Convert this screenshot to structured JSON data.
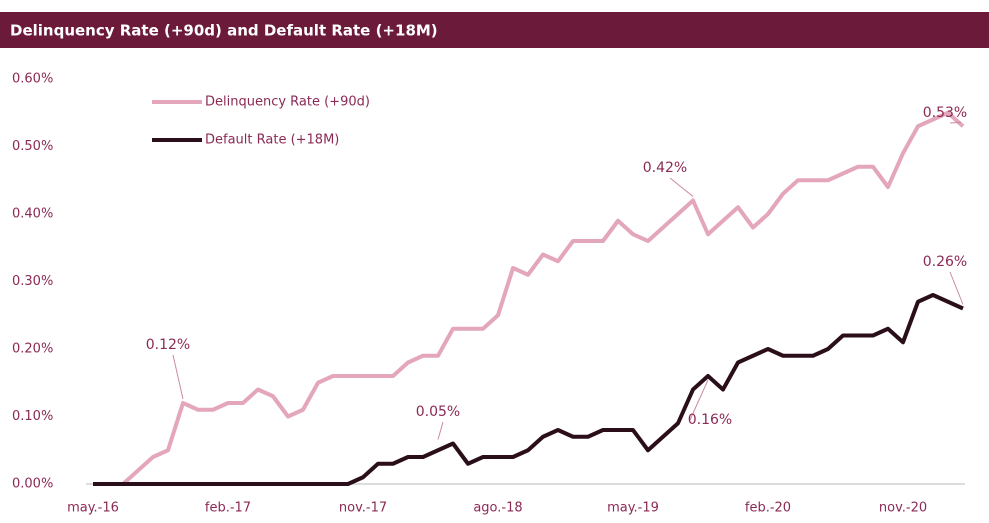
{
  "chart_data": {
    "type": "line",
    "title": "Delinquency Rate (+90d) and Default Rate (+18M)",
    "categories": [
      "may.-16",
      null,
      null,
      null,
      null,
      null,
      null,
      null,
      null,
      "feb.-17",
      null,
      null,
      null,
      null,
      null,
      null,
      null,
      null,
      "nov.-17",
      null,
      null,
      null,
      null,
      null,
      null,
      null,
      null,
      "ago.-18",
      null,
      null,
      null,
      null,
      null,
      null,
      null,
      null,
      "may.-19",
      null,
      null,
      null,
      null,
      null,
      null,
      null,
      null,
      "feb.-20",
      null,
      null,
      null,
      null,
      null,
      null,
      null,
      null,
      "nov.-20",
      null,
      null,
      null,
      null
    ],
    "series": [
      {
        "name": "Delinquency Rate (+90d)",
        "color": "#e3a6ba",
        "values": [
          0,
          0,
          0,
          0.02,
          0.04,
          0.05,
          0.12,
          0.11,
          0.11,
          0.12,
          0.12,
          0.14,
          0.13,
          0.1,
          0.11,
          0.15,
          0.16,
          0.16,
          0.16,
          0.16,
          0.16,
          0.18,
          0.19,
          0.19,
          0.23,
          0.23,
          0.23,
          0.25,
          0.32,
          0.31,
          0.34,
          0.33,
          0.36,
          0.36,
          0.36,
          0.39,
          0.37,
          0.36,
          0.38,
          0.4,
          0.42,
          0.37,
          0.39,
          0.41,
          0.38,
          0.4,
          0.43,
          0.45,
          0.45,
          0.45,
          0.46,
          0.47,
          0.47,
          0.44,
          0.49,
          0.53,
          0.54,
          0.55,
          0.53
        ]
      },
      {
        "name": "Default Rate (+18M)",
        "color": "#2a0f1a",
        "values": [
          0,
          0,
          0,
          0,
          0,
          0,
          0,
          0,
          0,
          0,
          0,
          0,
          0,
          0,
          0,
          0,
          0,
          0,
          0.01,
          0.03,
          0.03,
          0.04,
          0.04,
          0.05,
          0.06,
          0.03,
          0.04,
          0.04,
          0.04,
          0.05,
          0.07,
          0.08,
          0.07,
          0.07,
          0.08,
          0.08,
          0.08,
          0.05,
          0.07,
          0.09,
          0.14,
          0.16,
          0.14,
          0.18,
          0.19,
          0.2,
          0.19,
          0.19,
          0.19,
          0.2,
          0.22,
          0.22,
          0.22,
          0.23,
          0.21,
          0.27,
          0.28,
          0.27,
          0.26
        ]
      }
    ],
    "annotations": [
      "0.12%",
      "0.05%",
      "0.42%",
      "0.16%",
      "0.53%",
      "0.26%"
    ],
    "ylim": [
      0,
      0.6
    ],
    "yticks": [
      {
        "value": 0,
        "label": "0.00%"
      },
      {
        "value": 0.1,
        "label": "0.10%"
      },
      {
        "value": 0.2,
        "label": "0.20%"
      },
      {
        "value": 0.3,
        "label": "0.30%"
      },
      {
        "value": 0.4,
        "label": "0.40%"
      },
      {
        "value": 0.5,
        "label": "0.50%"
      },
      {
        "value": 0.6,
        "label": "0.60%"
      }
    ],
    "grid": false,
    "legend": "upper left"
  }
}
